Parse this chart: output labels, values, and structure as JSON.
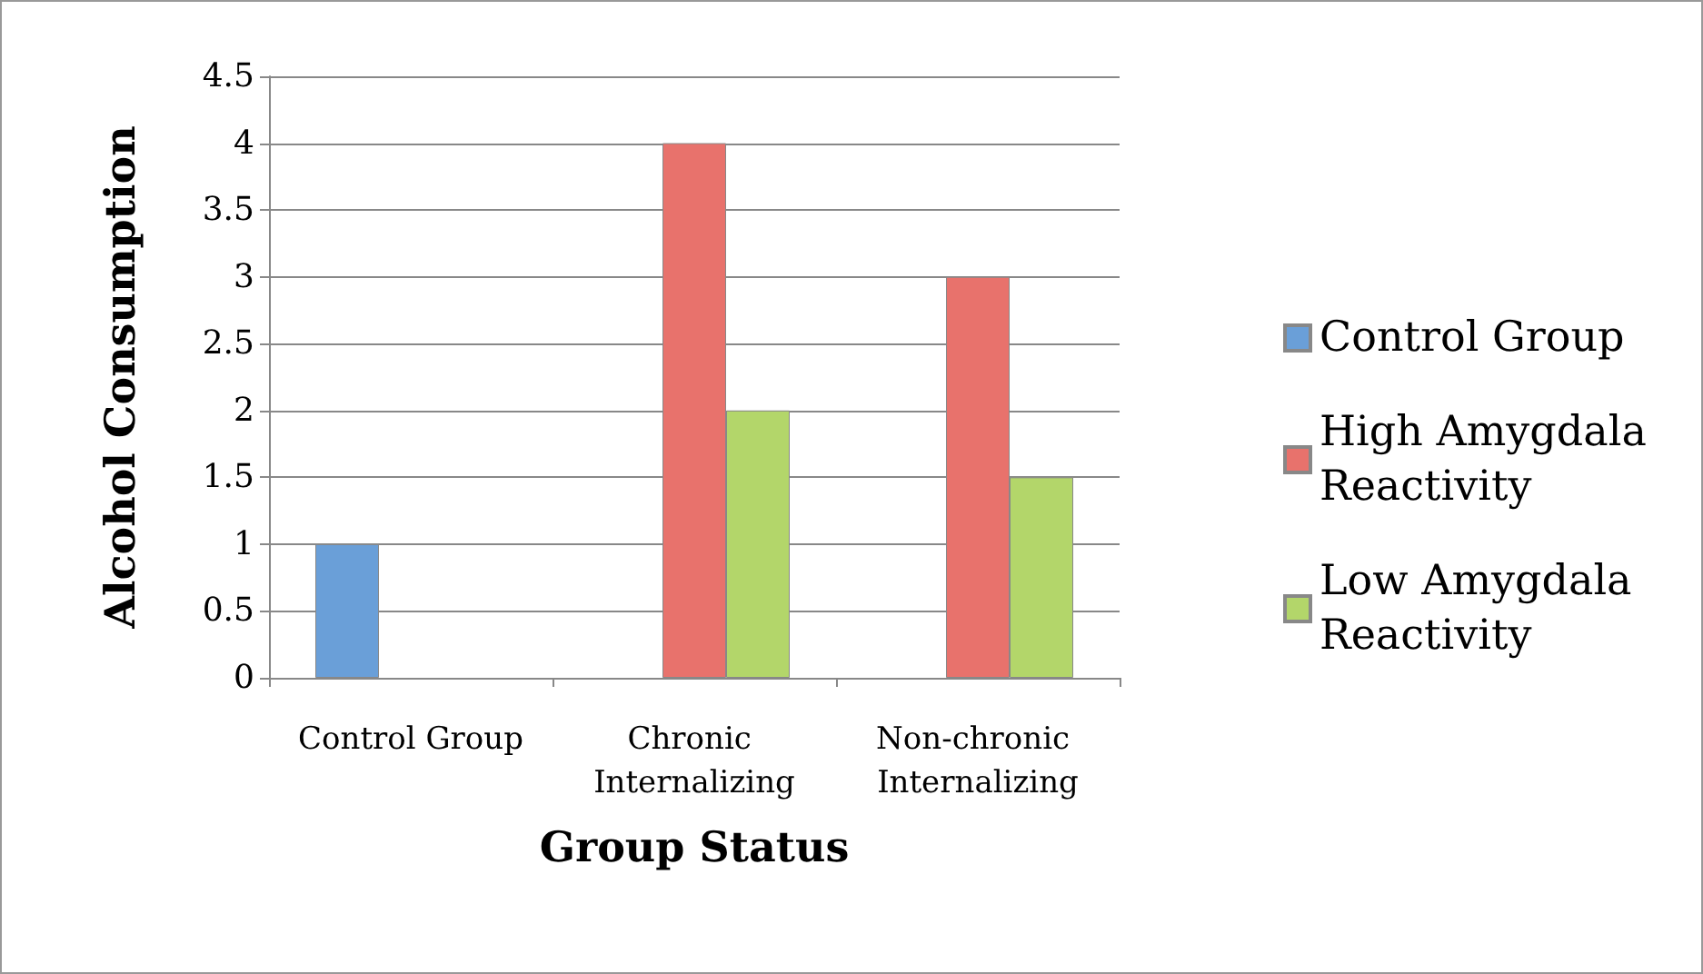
{
  "chart_data": {
    "type": "bar",
    "xlabel": "Group Status",
    "ylabel": "Alcohol Consumption",
    "categories": [
      "Control Group",
      "Chronic Internalizing",
      "Non-chronic Internalizing"
    ],
    "series": [
      {
        "name": "Control Group",
        "color": "#6a9fd8",
        "values": [
          1,
          null,
          null
        ]
      },
      {
        "name": "High Amygdala Reactivity",
        "color": "#e8726c",
        "values": [
          null,
          4,
          3
        ]
      },
      {
        "name": "Low Amygdala Reactivity",
        "color": "#b3d66a",
        "values": [
          null,
          2,
          1.5
        ]
      }
    ],
    "ylim": [
      0,
      4.5
    ],
    "yticks": [
      0,
      0.5,
      1,
      1.5,
      2,
      2.5,
      3,
      3.5,
      4,
      4.5
    ],
    "grid": "y",
    "legend": "right"
  }
}
